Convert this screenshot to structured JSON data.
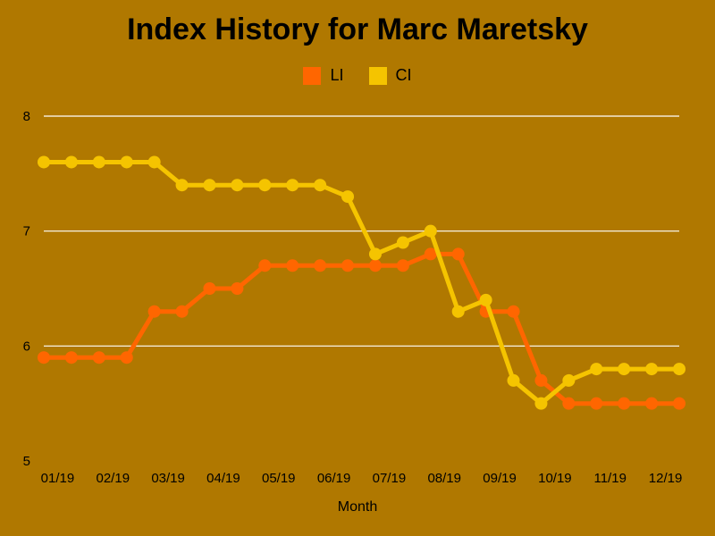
{
  "chart_data": {
    "type": "line",
    "title": "Index History for Marc Maretsky",
    "xlabel": "Month",
    "ylabel": "",
    "ylim": [
      5,
      8
    ],
    "yticks": [
      5,
      6,
      7,
      8
    ],
    "grid": true,
    "legend_position": "top-center",
    "x_tick_labels": [
      "01/19",
      "02/19",
      "03/19",
      "04/19",
      "05/19",
      "06/19",
      "07/19",
      "08/19",
      "09/19",
      "10/19",
      "11/19",
      "12/19"
    ],
    "series": [
      {
        "name": "LI",
        "color": "#ff6600",
        "values": [
          5.9,
          5.9,
          5.9,
          5.9,
          6.3,
          6.3,
          6.5,
          6.5,
          6.7,
          6.7,
          6.7,
          6.7,
          6.7,
          6.7,
          6.8,
          6.8,
          6.3,
          6.3,
          5.7,
          5.5,
          5.5,
          5.5,
          5.5,
          5.5
        ]
      },
      {
        "name": "CI",
        "color": "#f5c400",
        "values": [
          7.6,
          7.6,
          7.6,
          7.6,
          7.6,
          7.4,
          7.4,
          7.4,
          7.4,
          7.4,
          7.4,
          7.3,
          6.8,
          6.9,
          7.0,
          6.3,
          6.4,
          5.7,
          5.5,
          5.7,
          5.8,
          5.8,
          5.8,
          5.8
        ]
      }
    ]
  },
  "colors": {
    "background": "#b07800",
    "grid": "#ffffff",
    "text": "#000000"
  }
}
